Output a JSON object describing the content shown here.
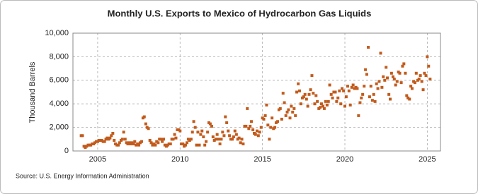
{
  "chart_data": {
    "type": "scatter",
    "title": "Monthly U.S. Exports to Mexico of Hydrocarbon Gas Liquids",
    "y_label": "Thousand Barrels",
    "source": "Source: U.S. Energy Information Administration",
    "color": "#c25b1c",
    "grid": true,
    "xlim": [
      2003.5,
      2025.8
    ],
    "xticks": [
      2005,
      2010,
      2015,
      2020,
      2025
    ],
    "ylim": [
      0,
      10000
    ],
    "yticks": [
      0,
      {
        "value": 2000,
        "label": "2,000"
      },
      {
        "value": 4000,
        "label": "4,000"
      },
      {
        "value": 6000,
        "label": "6,000"
      },
      {
        "value": 8000,
        "label": "8,000"
      },
      {
        "value": 10000,
        "label": "10,000"
      }
    ],
    "x": [
      2004.0,
      2004.08,
      2004.17,
      2004.25,
      2004.33,
      2004.42,
      2004.5,
      2004.58,
      2004.67,
      2004.75,
      2004.83,
      2004.92,
      2005.0,
      2005.08,
      2005.17,
      2005.25,
      2005.33,
      2005.42,
      2005.5,
      2005.58,
      2005.67,
      2005.75,
      2005.83,
      2005.92,
      2006.0,
      2006.08,
      2006.17,
      2006.25,
      2006.33,
      2006.42,
      2006.5,
      2006.58,
      2006.67,
      2006.75,
      2006.83,
      2006.92,
      2007.0,
      2007.08,
      2007.17,
      2007.25,
      2007.33,
      2007.42,
      2007.5,
      2007.58,
      2007.67,
      2007.75,
      2007.83,
      2007.92,
      2008.0,
      2008.08,
      2008.17,
      2008.25,
      2008.33,
      2008.42,
      2008.5,
      2008.58,
      2008.67,
      2008.75,
      2008.83,
      2008.92,
      2009.0,
      2009.08,
      2009.17,
      2009.25,
      2009.33,
      2009.42,
      2009.5,
      2009.58,
      2009.67,
      2009.75,
      2009.83,
      2009.92,
      2010.0,
      2010.08,
      2010.17,
      2010.25,
      2010.33,
      2010.42,
      2010.5,
      2010.58,
      2010.67,
      2010.75,
      2010.83,
      2010.92,
      2011.0,
      2011.08,
      2011.17,
      2011.25,
      2011.33,
      2011.42,
      2011.5,
      2011.58,
      2011.67,
      2011.75,
      2011.83,
      2011.92,
      2012.0,
      2012.08,
      2012.17,
      2012.25,
      2012.33,
      2012.42,
      2012.5,
      2012.58,
      2012.67,
      2012.75,
      2012.83,
      2012.92,
      2013.0,
      2013.08,
      2013.17,
      2013.25,
      2013.33,
      2013.42,
      2013.5,
      2013.58,
      2013.67,
      2013.75,
      2013.83,
      2013.92,
      2014.0,
      2014.08,
      2014.17,
      2014.25,
      2014.33,
      2014.42,
      2014.5,
      2014.58,
      2014.67,
      2014.75,
      2014.83,
      2014.92,
      2015.0,
      2015.08,
      2015.17,
      2015.25,
      2015.33,
      2015.42,
      2015.5,
      2015.58,
      2015.67,
      2015.75,
      2015.83,
      2015.92,
      2016.0,
      2016.08,
      2016.17,
      2016.25,
      2016.33,
      2016.42,
      2016.5,
      2016.58,
      2016.67,
      2016.75,
      2016.83,
      2016.92,
      2017.0,
      2017.08,
      2017.17,
      2017.25,
      2017.33,
      2017.42,
      2017.5,
      2017.58,
      2017.67,
      2017.75,
      2017.83,
      2017.92,
      2018.0,
      2018.08,
      2018.17,
      2018.25,
      2018.33,
      2018.42,
      2018.5,
      2018.58,
      2018.67,
      2018.75,
      2018.83,
      2018.92,
      2019.0,
      2019.08,
      2019.17,
      2019.25,
      2019.33,
      2019.42,
      2019.5,
      2019.58,
      2019.67,
      2019.75,
      2019.83,
      2019.92,
      2020.0,
      2020.08,
      2020.17,
      2020.25,
      2020.33,
      2020.42,
      2020.5,
      2020.58,
      2020.67,
      2020.75,
      2020.83,
      2020.92,
      2021.0,
      2021.08,
      2021.17,
      2021.25,
      2021.33,
      2021.42,
      2021.5,
      2021.58,
      2021.67,
      2021.75,
      2021.83,
      2021.92,
      2022.0,
      2022.08,
      2022.17,
      2022.25,
      2022.33,
      2022.42,
      2022.5,
      2022.58,
      2022.67,
      2022.75,
      2022.83,
      2022.92,
      2023.0,
      2023.08,
      2023.17,
      2023.25,
      2023.33,
      2023.42,
      2023.5,
      2023.58,
      2023.67,
      2023.75,
      2023.83,
      2023.92,
      2024.0,
      2024.08,
      2024.17,
      2024.25,
      2024.33,
      2024.42,
      2024.5,
      2024.58,
      2024.67,
      2024.75,
      2024.83,
      2024.92,
      2025.0,
      2025.08,
      2025.17
    ],
    "values": [
      1300,
      1300,
      400,
      300,
      400,
      500,
      500,
      500,
      600,
      600,
      700,
      800,
      800,
      900,
      900,
      900,
      800,
      800,
      1000,
      1100,
      1000,
      1100,
      1300,
      1500,
      900,
      600,
      500,
      500,
      700,
      900,
      1000,
      1600,
      1000,
      700,
      600,
      700,
      600,
      700,
      600,
      800,
      500,
      600,
      500,
      700,
      800,
      2800,
      2900,
      2300,
      2000,
      1900,
      900,
      700,
      500,
      600,
      500,
      800,
      700,
      1000,
      1000,
      800,
      1000,
      500,
      400,
      500,
      600,
      600,
      1000,
      1000,
      1400,
      1100,
      1800,
      1800,
      1700,
      600,
      600,
      400,
      500,
      700,
      1000,
      900,
      1000,
      1600,
      2500,
      2000,
      500,
      1600,
      500,
      1400,
      1700,
      1200,
      500,
      800,
      1600,
      2400,
      2300,
      2100,
      1200,
      900,
      1000,
      1400,
      1000,
      600,
      1000,
      1600,
      1300,
      2900,
      2400,
      1700,
      1300,
      1000,
      1000,
      1200,
      1700,
      1400,
      1000,
      1100,
      700,
      1000,
      600,
      2100,
      2100,
      3600,
      1900,
      2100,
      2500,
      1800,
      1500,
      1400,
      1700,
      1300,
      1600,
      2000,
      2800,
      2700,
      3000,
      3900,
      2200,
      1000,
      2000,
      2800,
      1900,
      2000,
      2400,
      2500,
      3500,
      3600,
      2700,
      4900,
      4100,
      3000,
      3300,
      3500,
      2800,
      3800,
      3300,
      3600,
      3000,
      5000,
      5700,
      5100,
      4000,
      4500,
      4600,
      4800,
      4400,
      3800,
      4800,
      5200,
      6400,
      4900,
      4000,
      4700,
      4200,
      3600,
      3700,
      4000,
      3800,
      3600,
      4200,
      3900,
      4200,
      5600,
      4800,
      4500,
      5000,
      5000,
      4200,
      4500,
      5100,
      4000,
      5300,
      5100,
      3800,
      4600,
      5500,
      5100,
      3900,
      5400,
      5600,
      5300,
      5400,
      5300,
      3000,
      4100,
      4500,
      4800,
      5500,
      6900,
      6500,
      8800,
      4600,
      5500,
      4300,
      4800,
      4200,
      5700,
      5300,
      5900,
      8300,
      5400,
      6300,
      6000,
      7100,
      6200,
      4800,
      4400,
      6600,
      6300,
      6100,
      5600,
      5900,
      6700,
      6600,
      5800,
      7200,
      7400,
      6600,
      4700,
      4500,
      4400,
      5500,
      5300,
      5900,
      5800,
      6600,
      6000,
      6100,
      6400,
      5900,
      5200,
      6600,
      6400,
      8000,
      7200,
      6100
    ]
  }
}
